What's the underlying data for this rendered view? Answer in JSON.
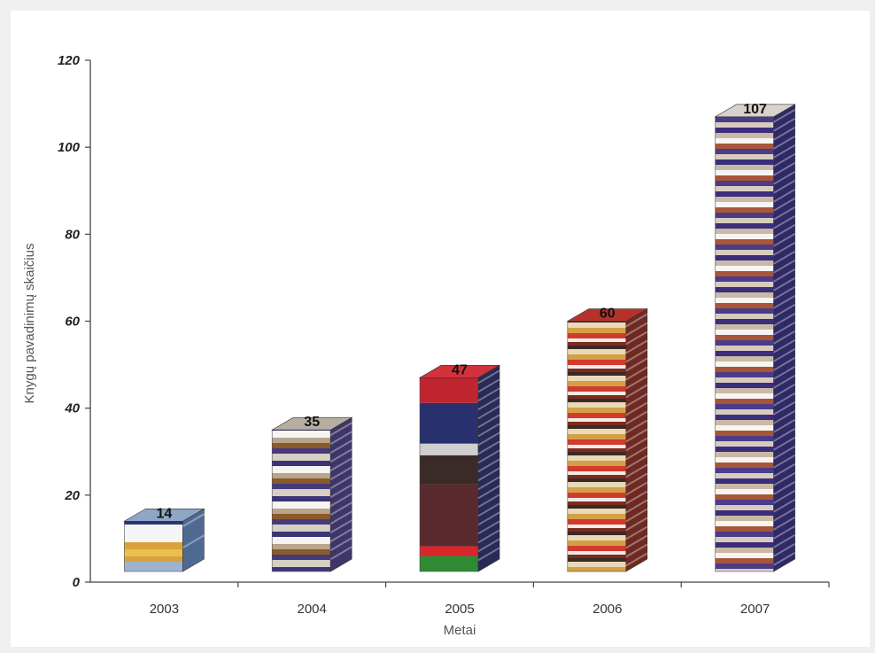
{
  "chart_data": {
    "type": "bar",
    "title": "",
    "xlabel": "Metai",
    "ylabel": "Knygų pavadinimų skaičius",
    "categories": [
      "2003",
      "2004",
      "2005",
      "2006",
      "2007"
    ],
    "values": [
      14,
      35,
      47,
      60,
      107
    ],
    "data_labels": [
      "14",
      "35",
      "47",
      "60",
      "107"
    ],
    "ylim": [
      0,
      120
    ],
    "yticks": [
      0,
      20,
      40,
      60,
      80,
      100,
      120
    ],
    "grid": false,
    "legend": "none",
    "style": "3d-column-textured",
    "colors": {
      "background": "#efefef",
      "plot_background": "#ffffff",
      "axis": "#444444"
    }
  }
}
